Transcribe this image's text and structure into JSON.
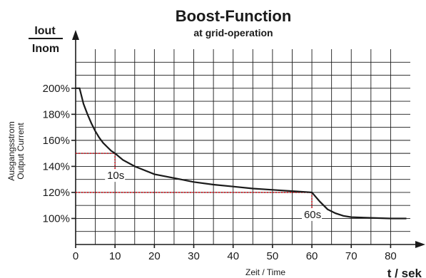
{
  "chart_data": {
    "type": "line",
    "title": "Boost-Function",
    "subtitle": "at grid-operation",
    "ylabel_fraction": {
      "numerator": "Iout",
      "denominator": "Inom"
    },
    "ylabel_side": [
      "Ausgangsstrom",
      "Output Current"
    ],
    "xlabel": "Zeit / Time",
    "xlabel_unit": "t / sek",
    "xlim": [
      0,
      85
    ],
    "ylim": [
      80,
      230
    ],
    "x_ticks": [
      0,
      10,
      20,
      30,
      40,
      50,
      60,
      70,
      80
    ],
    "x_tick_labels": [
      "0",
      "10",
      "20",
      "30",
      "40",
      "50",
      "60",
      "70",
      "80"
    ],
    "y_ticks": [
      100,
      120,
      140,
      160,
      180,
      200
    ],
    "y_tick_labels": [
      "100%",
      "120%",
      "140%",
      "160%",
      "180%",
      "200%"
    ],
    "grid": true,
    "series": [
      {
        "x": [
          0,
          1,
          2,
          3,
          4,
          5,
          6,
          7,
          8,
          9,
          10,
          12,
          15,
          20,
          25,
          30,
          35,
          40,
          45,
          50,
          55,
          60,
          62,
          64,
          66,
          68,
          70,
          75,
          80,
          84
        ],
        "y": [
          200,
          200,
          188,
          180,
          173,
          167,
          162,
          158,
          155,
          152,
          150,
          145,
          140,
          134,
          131,
          128,
          126,
          124.5,
          123,
          122,
          121,
          120,
          113,
          107,
          104,
          102,
          101,
          100.5,
          100,
          100
        ]
      }
    ],
    "annotations": [
      {
        "text": "10s",
        "x": 10,
        "y": 150
      },
      {
        "text": "60s",
        "x": 60,
        "y": 120
      }
    ]
  }
}
